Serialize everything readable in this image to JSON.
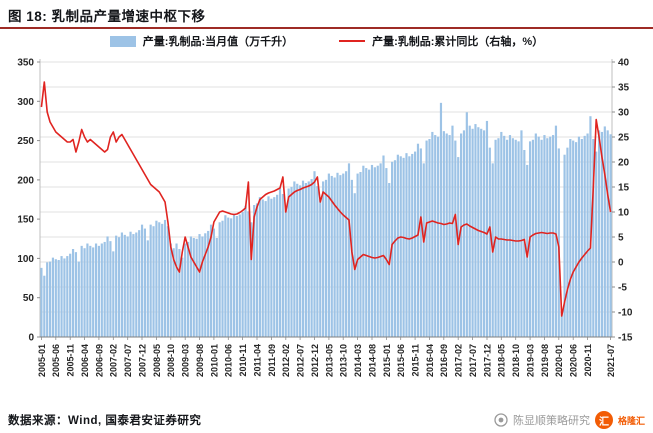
{
  "figure": {
    "title": "图 18:  乳制品产量增速中枢下移",
    "source": "数据来源：Wind, 国泰君安证券研究",
    "watermark": {
      "name": "陈显顺策略研究",
      "brand": "格隆汇",
      "brand_initial": "汇"
    }
  },
  "legend": [
    {
      "label": "产量:乳制品:当月值（万千升）",
      "type": "bar",
      "color": "#9dc3e6"
    },
    {
      "label": "产量:乳制品:累计同比（右轴，%）",
      "type": "line",
      "color": "#e02420"
    }
  ],
  "chart_data": {
    "type": "bar",
    "title": "乳制品产量增速中枢下移",
    "start_month": "2005-01",
    "end_month": "2021-07",
    "left_axis": {
      "min": 0,
      "max": 350,
      "step": 50,
      "applies_to": "产量:乳制品:当月值（万千升）"
    },
    "right_axis": {
      "min": -15,
      "max": 40,
      "step": 5,
      "applies_to": "产量:乳制品:累计同比（%）"
    },
    "grid": "horizontal-light",
    "legend_position": "top-center",
    "x_ticks": [
      {
        "i": 0,
        "label": "2005-01"
      },
      {
        "i": 5,
        "label": "2005-06"
      },
      {
        "i": 10,
        "label": "2005-11"
      },
      {
        "i": 15,
        "label": "2006-04"
      },
      {
        "i": 20,
        "label": "2006-09"
      },
      {
        "i": 25,
        "label": "2007-02"
      },
      {
        "i": 30,
        "label": "2007-07"
      },
      {
        "i": 35,
        "label": "2007-12"
      },
      {
        "i": 40,
        "label": "2008-05"
      },
      {
        "i": 45,
        "label": "2008-10"
      },
      {
        "i": 50,
        "label": "2009-03"
      },
      {
        "i": 55,
        "label": "2009-08"
      },
      {
        "i": 60,
        "label": "2010-01"
      },
      {
        "i": 65,
        "label": "2010-06"
      },
      {
        "i": 70,
        "label": "2010-11"
      },
      {
        "i": 75,
        "label": "2011-04"
      },
      {
        "i": 80,
        "label": "2011-09"
      },
      {
        "i": 85,
        "label": "2012-02"
      },
      {
        "i": 90,
        "label": "2012-07"
      },
      {
        "i": 95,
        "label": "2012-12"
      },
      {
        "i": 100,
        "label": "2013-05"
      },
      {
        "i": 105,
        "label": "2013-10"
      },
      {
        "i": 110,
        "label": "2014-03"
      },
      {
        "i": 115,
        "label": "2014-08"
      },
      {
        "i": 120,
        "label": "2015-01"
      },
      {
        "i": 125,
        "label": "2015-06"
      },
      {
        "i": 130,
        "label": "2015-11"
      },
      {
        "i": 135,
        "label": "2016-04"
      },
      {
        "i": 140,
        "label": "2016-09"
      },
      {
        "i": 145,
        "label": "2017-02"
      },
      {
        "i": 150,
        "label": "2017-07"
      },
      {
        "i": 155,
        "label": "2017-12"
      },
      {
        "i": 160,
        "label": "2018-05"
      },
      {
        "i": 165,
        "label": "2018-10"
      },
      {
        "i": 170,
        "label": "2019-03"
      },
      {
        "i": 175,
        "label": "2019-08"
      },
      {
        "i": 180,
        "label": "2020-01"
      },
      {
        "i": 185,
        "label": "2020-06"
      },
      {
        "i": 190,
        "label": "2020-11"
      },
      {
        "i": 198,
        "label": "2021-07"
      }
    ],
    "series": [
      {
        "name": "产量:乳制品:当月值（万千升）",
        "type": "bar",
        "axis": "left",
        "color": "#9dc3e6",
        "values": [
          88,
          78,
          95,
          96,
          101,
          99,
          98,
          103,
          100,
          103,
          106,
          112,
          108,
          96,
          116,
          113,
          119,
          116,
          114,
          119,
          116,
          119,
          121,
          128,
          122,
          109,
          129,
          127,
          133,
          130,
          128,
          134,
          131,
          133,
          136,
          143,
          138,
          123,
          143,
          141,
          148,
          146,
          144,
          149,
          141,
          119,
          113,
          119,
          112,
          101,
          119,
          121,
          128,
          126,
          125,
          131,
          128,
          132,
          135,
          143,
          138,
          126,
          146,
          148,
          155,
          152,
          151,
          157,
          154,
          156,
          159,
          167,
          160,
          146,
          168,
          170,
          178,
          175,
          173,
          179,
          176,
          178,
          181,
          189,
          182,
          166,
          189,
          191,
          198,
          195,
          193,
          199,
          196,
          198,
          201,
          211,
          192,
          176,
          198,
          200,
          208,
          205,
          203,
          209,
          206,
          208,
          211,
          221,
          200,
          183,
          208,
          210,
          218,
          215,
          213,
          219,
          216,
          218,
          221,
          231,
          215,
          196,
          223,
          225,
          232,
          230,
          228,
          234,
          230,
          233,
          236,
          246,
          240,
          221,
          250,
          252,
          261,
          257,
          255,
          298,
          262,
          259,
          257,
          269,
          250,
          229,
          259,
          263,
          286,
          269,
          265,
          271,
          267,
          265,
          263,
          275,
          241,
          221,
          251,
          253,
          261,
          256,
          251,
          257,
          253,
          251,
          249,
          263,
          238,
          219,
          249,
          251,
          259,
          255,
          251,
          257,
          253,
          255,
          257,
          269,
          240,
          32,
          232,
          241,
          252,
          250,
          248,
          255,
          252,
          256,
          259,
          281,
          252,
          236,
          263,
          261,
          268,
          263,
          258
        ]
      },
      {
        "name": "产量:乳制品:累计同比（右轴，%）",
        "type": "line",
        "axis": "right",
        "color": "#e02420",
        "values": [
          31,
          36,
          30,
          28,
          27,
          26,
          25.5,
          25,
          24.5,
          24,
          24,
          24.5,
          22,
          24,
          26.5,
          25,
          24,
          24.5,
          24,
          23.5,
          23,
          22.5,
          22,
          22.5,
          25,
          26,
          24,
          25,
          25.5,
          24.5,
          23.5,
          22.5,
          21.5,
          20.5,
          19.5,
          18.5,
          17.5,
          16.5,
          15.5,
          15,
          14.5,
          14,
          13,
          12,
          8,
          3,
          0.5,
          -1,
          -2,
          2,
          5,
          3,
          1,
          0,
          -1,
          -2,
          0,
          1.5,
          3,
          5,
          8,
          9,
          10,
          10.2,
          10,
          9.8,
          9.6,
          9.5,
          9.6,
          9.9,
          10.3,
          10.8,
          16,
          0.5,
          9,
          11,
          12.5,
          13,
          13.5,
          13.8,
          14,
          14.2,
          14.5,
          14.8,
          17,
          10,
          13,
          13.5,
          14,
          14.3,
          14.5,
          14.8,
          15,
          15.2,
          15.5,
          16,
          17,
          12,
          14,
          13.5,
          13,
          12.2,
          11.4,
          10.7,
          10,
          9.4,
          8.9,
          8.4,
          2,
          -1.5,
          0.5,
          1,
          1.5,
          1.3,
          1.1,
          0.9,
          0.8,
          0.9,
          1.1,
          1.3,
          0.5,
          -0.5,
          3.5,
          4.2,
          4.8,
          5,
          4.9,
          4.7,
          4.6,
          4.8,
          5.1,
          5.4,
          9,
          4,
          7.8,
          8,
          8.2,
          8,
          7.8,
          7.7,
          7.5,
          7.6,
          7.8,
          7.7,
          9.5,
          3.5,
          7,
          7.4,
          7.6,
          7.2,
          6.9,
          6.6,
          6.3,
          6.1,
          5.9,
          5.6,
          7,
          2,
          5,
          4.6,
          4.6,
          4.5,
          4.4,
          4.4,
          4.3,
          4.2,
          4.2,
          4.3,
          4.5,
          1,
          5,
          5.4,
          5.7,
          5.8,
          5.9,
          5.8,
          5.7,
          5.8,
          5.8,
          5.6,
          3,
          -10.8,
          -8,
          -5.5,
          -3.5,
          -2,
          -1,
          0,
          0.8,
          1.5,
          2.2,
          2.8,
          15,
          28.5,
          25,
          21,
          17.5,
          13.5,
          10
        ]
      }
    ]
  }
}
